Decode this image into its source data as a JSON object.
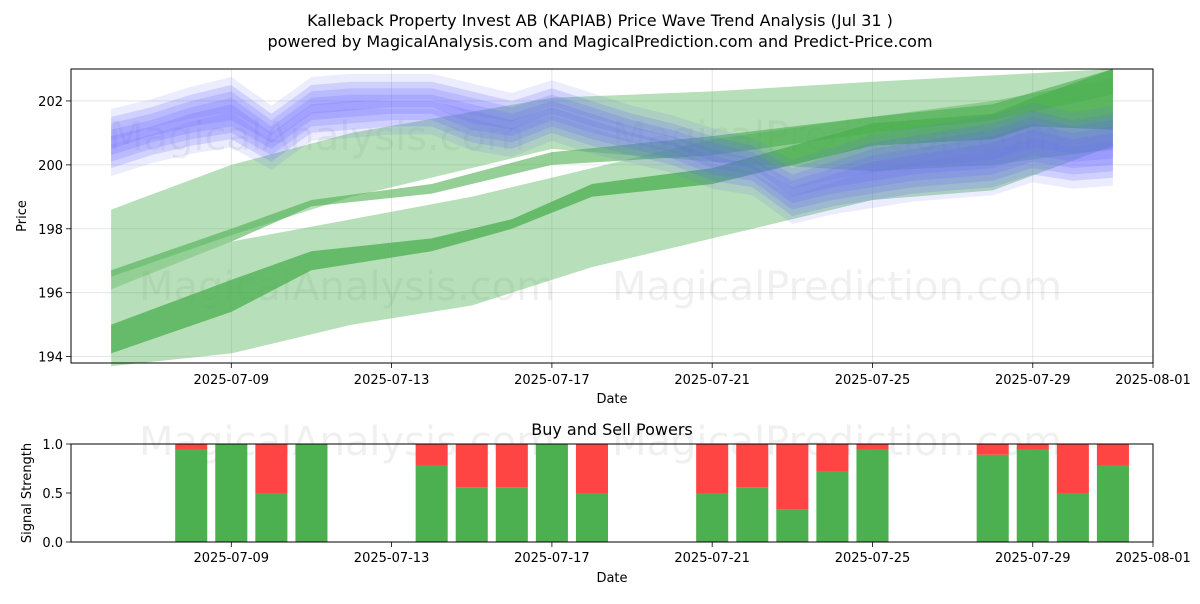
{
  "header": {
    "title_line1": "Kalleback Property Invest AB (KAPIAB) Price Wave Trend Analysis (Jul 31 )",
    "title_line2": "powered by MagicalAnalysis.com and MagicalPrediction.com and Predict-Price.com"
  },
  "watermarks": [
    "MagicalAnalysis.com",
    "MagicalPrediction.com"
  ],
  "chart_data": [
    {
      "type": "area",
      "title": "",
      "xlabel": "Date",
      "ylabel": "Price",
      "xlim": [
        "2025-07-05",
        "2025-08-01"
      ],
      "ylim": [
        193.8,
        203.0
      ],
      "x_ticks": [
        "2025-07-09",
        "2025-07-13",
        "2025-07-17",
        "2025-07-21",
        "2025-07-25",
        "2025-07-29",
        "2025-08-01"
      ],
      "y_ticks": [
        194,
        196,
        198,
        200,
        202
      ],
      "grid": true,
      "colors": {
        "blue_band": "#6666ff",
        "green_band": "#4caf50"
      },
      "series": [
        {
          "color": "blue",
          "x": [
            "2025-07-06",
            "2025-07-07",
            "2025-07-08",
            "2025-07-09",
            "2025-07-10",
            "2025-07-11",
            "2025-07-12",
            "2025-07-13",
            "2025-07-14",
            "2025-07-15",
            "2025-07-16",
            "2025-07-17",
            "2025-07-18",
            "2025-07-19",
            "2025-07-20",
            "2025-07-21",
            "2025-07-22",
            "2025-07-23",
            "2025-07-24",
            "2025-07-25",
            "2025-07-26",
            "2025-07-27",
            "2025-07-28",
            "2025-07-29",
            "2025-07-30",
            "2025-07-31"
          ],
          "low": [
            200.2,
            200.6,
            200.9,
            201.1,
            200.4,
            201.3,
            201.4,
            201.5,
            201.5,
            201.0,
            200.8,
            201.3,
            200.9,
            200.6,
            200.3,
            199.8,
            199.6,
            198.7,
            199.0,
            199.2,
            199.4,
            199.5,
            199.6,
            200.0,
            199.8,
            199.9
          ],
          "high": [
            201.2,
            201.5,
            201.9,
            202.2,
            201.3,
            202.2,
            202.3,
            202.3,
            202.3,
            202.0,
            201.7,
            202.1,
            201.7,
            201.3,
            201.0,
            200.6,
            200.3,
            199.6,
            200.0,
            200.4,
            200.6,
            200.8,
            201.0,
            201.4,
            201.1,
            201.3
          ]
        },
        {
          "color": "green",
          "x": [
            "2025-07-06",
            "2025-07-09",
            "2025-07-11",
            "2025-07-14",
            "2025-07-16",
            "2025-07-18",
            "2025-07-21",
            "2025-07-23",
            "2025-07-25",
            "2025-07-28",
            "2025-07-29",
            "2025-07-31"
          ],
          "low": [
            194.1,
            195.4,
            196.7,
            197.3,
            198.0,
            199.0,
            199.4,
            200.0,
            200.6,
            200.8,
            201.2,
            201.1
          ],
          "high": [
            195.0,
            196.4,
            197.3,
            197.7,
            198.3,
            199.4,
            199.9,
            200.6,
            201.3,
            201.6,
            202.1,
            203.0
          ]
        },
        {
          "color": "green",
          "x": [
            "2025-07-06",
            "2025-07-09",
            "2025-07-11",
            "2025-07-14",
            "2025-07-17",
            "2025-07-21",
            "2025-07-25",
            "2025-07-28",
            "2025-07-31"
          ],
          "low": [
            196.1,
            197.6,
            198.7,
            199.1,
            200.0,
            200.3,
            201.0,
            201.4,
            202.2
          ],
          "high": [
            196.7,
            198.0,
            198.9,
            199.4,
            200.4,
            200.9,
            201.5,
            201.9,
            203.0
          ]
        },
        {
          "color": "green",
          "x": [
            "2025-07-06",
            "2025-07-09",
            "2025-07-12",
            "2025-07-17",
            "2025-07-21",
            "2025-07-25",
            "2025-07-28",
            "2025-07-31"
          ],
          "low": [
            196.5,
            197.8,
            199.0,
            200.5,
            200.1,
            199.8,
            200.0,
            200.5
          ],
          "high": [
            198.6,
            200.0,
            201.0,
            202.1,
            202.3,
            202.6,
            202.8,
            203.0
          ]
        },
        {
          "color": "green",
          "x": [
            "2025-07-06",
            "2025-07-09",
            "2025-07-12",
            "2025-07-15",
            "2025-07-18",
            "2025-07-21",
            "2025-07-25",
            "2025-07-28",
            "2025-07-31"
          ],
          "low": [
            193.7,
            194.1,
            195.0,
            195.6,
            196.8,
            197.7,
            198.9,
            199.2,
            200.6
          ],
          "high": [
            196.1,
            197.6,
            198.3,
            199.0,
            199.9,
            200.8,
            201.5,
            202.0,
            202.7
          ]
        }
      ]
    },
    {
      "type": "bar",
      "title": "Buy and Sell Powers",
      "xlabel": "Date",
      "ylabel": "Signal Strength",
      "xlim": [
        "2025-07-05",
        "2025-08-01"
      ],
      "ylim": [
        0,
        1.0
      ],
      "x_ticks": [
        "2025-07-09",
        "2025-07-13",
        "2025-07-17",
        "2025-07-21",
        "2025-07-25",
        "2025-07-29",
        "2025-08-01"
      ],
      "y_ticks": [
        0.0,
        0.5,
        1.0
      ],
      "colors": {
        "buy": "#4caf50",
        "sell": "#ff4444"
      },
      "categories": [
        "2025-07-08",
        "2025-07-09",
        "2025-07-10",
        "2025-07-11",
        "2025-07-14",
        "2025-07-15",
        "2025-07-16",
        "2025-07-17",
        "2025-07-18",
        "2025-07-21",
        "2025-07-22",
        "2025-07-23",
        "2025-07-24",
        "2025-07-25",
        "2025-07-28",
        "2025-07-29",
        "2025-07-30",
        "2025-07-31"
      ],
      "series": [
        {
          "name": "Buy",
          "values": [
            0.94,
            1.0,
            0.5,
            1.0,
            0.78,
            0.56,
            0.56,
            1.0,
            0.5,
            0.5,
            0.56,
            0.33,
            0.72,
            0.94,
            0.89,
            0.94,
            0.5,
            0.78
          ]
        },
        {
          "name": "Sell",
          "values": [
            0.06,
            0.0,
            0.5,
            0.0,
            0.22,
            0.44,
            0.44,
            0.0,
            0.5,
            0.5,
            0.44,
            0.67,
            0.28,
            0.06,
            0.11,
            0.06,
            0.5,
            0.22
          ]
        }
      ]
    }
  ]
}
